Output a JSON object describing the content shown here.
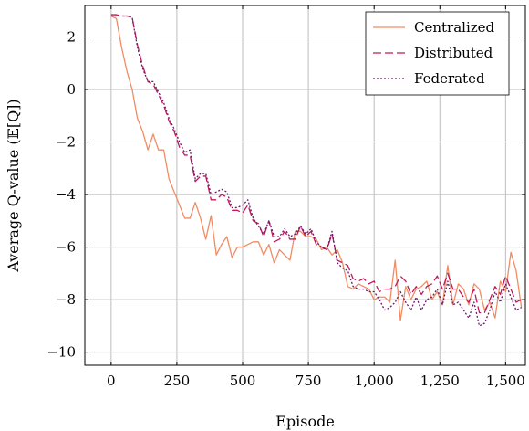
{
  "chart_data": {
    "type": "line",
    "title": "",
    "xlabel": "Episode",
    "ylabel": "Average Q-value (𝔼[Q])",
    "xlim": [
      -100,
      1575
    ],
    "ylim": [
      -10.5,
      3.2
    ],
    "grid": true,
    "legend_position": "top-right",
    "x_ticks": [
      0,
      250,
      500,
      750,
      1000,
      1250,
      1500
    ],
    "x_tick_labels": [
      "0",
      "250",
      "500",
      "750",
      "1,000",
      "1,250",
      "1,500"
    ],
    "y_ticks": [
      2,
      0,
      -2,
      -4,
      -6,
      -8,
      -10
    ],
    "y_tick_labels": [
      "2",
      "0",
      "−2",
      "−4",
      "−6",
      "−8",
      "−10"
    ],
    "x": [
      0,
      20,
      40,
      60,
      80,
      100,
      120,
      140,
      160,
      180,
      200,
      220,
      240,
      260,
      280,
      300,
      320,
      340,
      360,
      380,
      400,
      420,
      440,
      460,
      480,
      500,
      520,
      540,
      560,
      580,
      600,
      620,
      640,
      660,
      680,
      700,
      720,
      740,
      760,
      780,
      800,
      820,
      840,
      860,
      880,
      900,
      920,
      940,
      960,
      980,
      1000,
      1020,
      1040,
      1060,
      1080,
      1100,
      1120,
      1140,
      1160,
      1180,
      1200,
      1220,
      1240,
      1260,
      1280,
      1300,
      1320,
      1340,
      1360,
      1380,
      1400,
      1420,
      1440,
      1460,
      1480,
      1500,
      1520,
      1540,
      1560
    ],
    "series": [
      {
        "name": "Centralized",
        "color": "#f08c64",
        "dash": "solid",
        "values": [
          2.8,
          2.7,
          1.6,
          0.7,
          0.0,
          -1.1,
          -1.6,
          -2.3,
          -1.7,
          -2.3,
          -2.3,
          -3.4,
          -3.9,
          -4.4,
          -4.9,
          -4.9,
          -4.3,
          -4.9,
          -5.7,
          -4.8,
          -6.3,
          -5.9,
          -5.6,
          -6.4,
          -6.0,
          -6.0,
          -5.9,
          -5.8,
          -5.8,
          -6.3,
          -5.9,
          -6.6,
          -6.1,
          -6.3,
          -6.5,
          -5.4,
          -5.4,
          -5.6,
          -5.6,
          -5.7,
          -6.1,
          -6.0,
          -6.3,
          -6.1,
          -6.6,
          -7.5,
          -7.6,
          -7.4,
          -7.5,
          -7.6,
          -8.0,
          -7.9,
          -7.9,
          -8.1,
          -6.5,
          -8.8,
          -7.5,
          -8.0,
          -7.6,
          -7.5,
          -7.3,
          -8.0,
          -7.7,
          -8.2,
          -6.7,
          -8.2,
          -7.4,
          -7.6,
          -8.2,
          -7.4,
          -7.6,
          -8.4,
          -8.1,
          -8.7,
          -7.3,
          -7.7,
          -6.2,
          -6.9,
          -8.3
        ]
      },
      {
        "name": "Distributed",
        "color": "#c2185b",
        "dash": "dashed",
        "values": [
          2.85,
          2.85,
          2.8,
          2.8,
          2.75,
          1.7,
          0.9,
          0.3,
          0.2,
          -0.2,
          -0.6,
          -1.2,
          -1.6,
          -2.2,
          -2.5,
          -2.5,
          -3.5,
          -3.3,
          -3.3,
          -4.2,
          -4.2,
          -4.0,
          -4.1,
          -4.6,
          -4.6,
          -4.7,
          -4.4,
          -5.0,
          -5.1,
          -5.6,
          -5.0,
          -5.8,
          -5.7,
          -5.4,
          -5.7,
          -5.7,
          -5.2,
          -5.6,
          -5.4,
          -5.9,
          -6.0,
          -6.1,
          -5.5,
          -6.5,
          -6.6,
          -6.7,
          -7.2,
          -7.3,
          -7.2,
          -7.4,
          -7.3,
          -7.7,
          -7.6,
          -7.6,
          -7.5,
          -7.1,
          -7.3,
          -7.8,
          -7.5,
          -7.8,
          -7.5,
          -7.4,
          -7.1,
          -7.6,
          -7.0,
          -7.6,
          -7.6,
          -7.9,
          -8.1,
          -7.6,
          -8.5,
          -8.5,
          -8.0,
          -7.5,
          -7.8,
          -7.1,
          -7.6,
          -8.1,
          -8.0
        ]
      },
      {
        "name": "Federated",
        "color": "#6a1b6a",
        "dash": "dotted",
        "values": [
          2.8,
          2.8,
          2.8,
          2.8,
          2.75,
          1.6,
          0.8,
          0.3,
          0.3,
          -0.1,
          -0.5,
          -1.1,
          -1.5,
          -2.0,
          -2.4,
          -2.3,
          -3.4,
          -3.2,
          -3.2,
          -4.0,
          -3.9,
          -3.8,
          -3.9,
          -4.5,
          -4.5,
          -4.4,
          -4.2,
          -4.9,
          -5.2,
          -5.5,
          -5.0,
          -5.6,
          -5.6,
          -5.3,
          -5.6,
          -5.5,
          -5.2,
          -5.5,
          -5.3,
          -5.8,
          -6.0,
          -6.1,
          -5.4,
          -6.6,
          -6.8,
          -6.9,
          -7.5,
          -7.6,
          -7.6,
          -7.7,
          -7.7,
          -8.0,
          -8.4,
          -8.3,
          -8.1,
          -7.7,
          -8.1,
          -8.4,
          -7.9,
          -8.4,
          -8.0,
          -7.9,
          -7.6,
          -8.2,
          -7.3,
          -8.2,
          -8.1,
          -8.4,
          -8.7,
          -8.1,
          -9.0,
          -8.9,
          -8.4,
          -7.7,
          -8.1,
          -7.4,
          -7.9,
          -8.4,
          -8.3
        ]
      }
    ]
  }
}
